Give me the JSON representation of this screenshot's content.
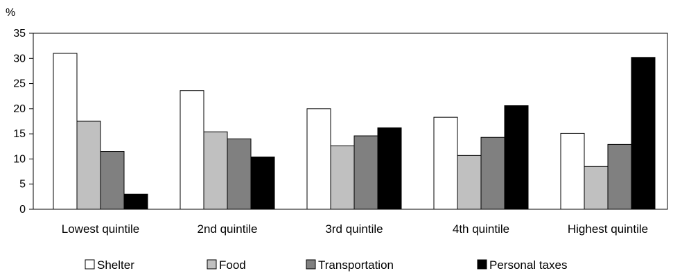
{
  "chart_data": {
    "type": "bar",
    "y_unit_label": "%",
    "ylim": [
      0,
      35
    ],
    "yticks": [
      0,
      5,
      10,
      15,
      20,
      25,
      30,
      35
    ],
    "grid": false,
    "legend_position": "bottom",
    "categories": [
      "Lowest quintile",
      "2nd quintile",
      "3rd quintile",
      "4th quintile",
      "Highest quintile"
    ],
    "series": [
      {
        "name": "Shelter",
        "color": "#ffffff",
        "values": [
          31.0,
          23.6,
          20.0,
          18.3,
          15.1
        ]
      },
      {
        "name": "Food",
        "color": "#c0c0c0",
        "values": [
          17.5,
          15.4,
          12.6,
          10.7,
          8.5
        ]
      },
      {
        "name": "Transportation",
        "color": "#808080",
        "values": [
          11.5,
          14.0,
          14.6,
          14.3,
          12.9
        ]
      },
      {
        "name": "Personal taxes",
        "color": "#000000",
        "values": [
          3.0,
          10.4,
          16.2,
          20.6,
          30.2
        ]
      }
    ]
  }
}
